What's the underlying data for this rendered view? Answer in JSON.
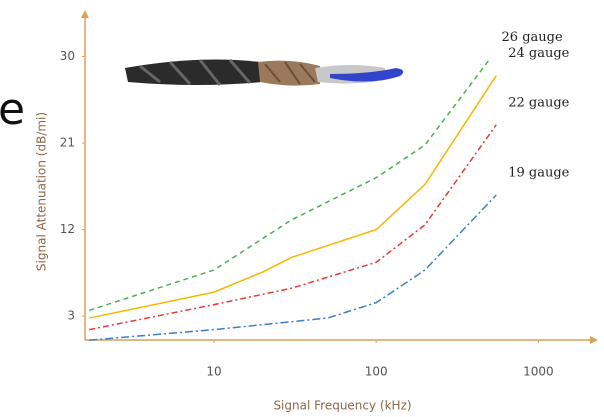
{
  "chart_data": {
    "type": "line",
    "x_label": "Signal Frequency (kHz)",
    "y_label": "Signal Attenuation (dB/mi)",
    "annotations": [
      "e"
    ],
    "xlog": true,
    "xlim": [
      1.6,
      2400
    ],
    "xticks": [
      10,
      100,
      1000
    ],
    "ylim": [
      0,
      34
    ],
    "yticks": [
      3,
      12,
      21,
      30
    ],
    "axis_color": "#d9a15a",
    "series": [
      {
        "name": "26 gauge",
        "color": "#4caf50",
        "dash": "5,4",
        "x": [
          1.7,
          10,
          30,
          100,
          200,
          500
        ],
        "values": [
          3.6,
          7.8,
          13,
          17.4,
          20.8,
          29.7
        ]
      },
      {
        "name": "24 gauge",
        "color": "#f5b800",
        "dash": "none",
        "x": [
          1.7,
          10,
          20,
          30,
          100,
          200,
          550
        ],
        "values": [
          2.8,
          5.5,
          7.6,
          9.1,
          12,
          16.7,
          28
        ]
      },
      {
        "name": "22 gauge",
        "color": "#e53935",
        "dash": "6,3,2,3",
        "x": [
          1.7,
          10,
          30,
          100,
          200,
          550
        ],
        "values": [
          1.6,
          4.2,
          5.9,
          8.6,
          12.5,
          22.9
        ]
      },
      {
        "name": "19 gauge",
        "color": "#3b7fc4",
        "dash": "8,3,2,3",
        "x": [
          1.7,
          10,
          50,
          100,
          200,
          550
        ],
        "values": [
          0.5,
          1.6,
          2.8,
          4.4,
          7.8,
          15.6
        ]
      }
    ]
  }
}
